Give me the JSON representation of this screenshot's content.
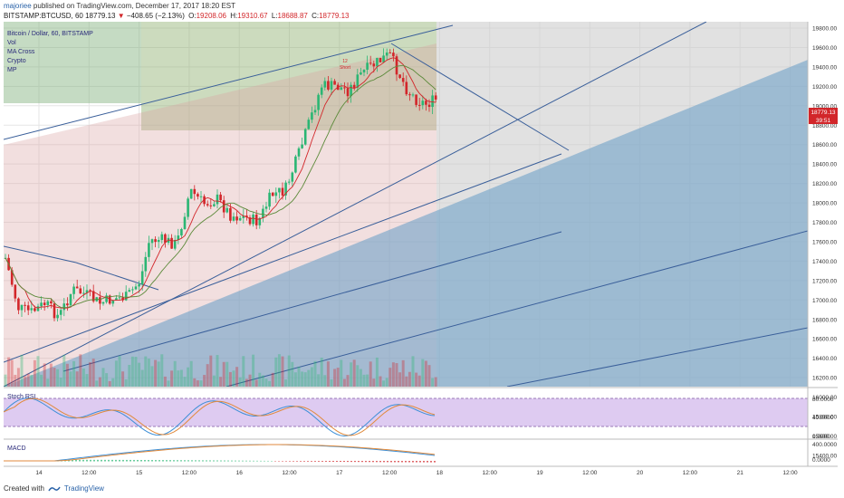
{
  "header": {
    "author": "majoriee",
    "published_text": "published on TradingView.com, December 17, 2017 18:20 EST",
    "symbol": "BITSTAMP:BTCUSD, 60",
    "last": "18779.13",
    "change": "−408.65 (−2.13%)",
    "open_label": "O:",
    "open": "19208.06",
    "high_label": "H:",
    "high": "19310.67",
    "low_label": "L:",
    "low": "18688.87",
    "close_label": "C:",
    "close": "18779.13"
  },
  "legend": {
    "title": "Bitcoin / Dollar, 60, BITSTAMP",
    "items": [
      "Vol",
      "MA Cross",
      "Crypto",
      "MP"
    ]
  },
  "price_axis": {
    "ticks": [
      "19800.00",
      "19600.00",
      "19400.00",
      "19200.00",
      "19000.00",
      "18800.00",
      "18600.00",
      "18400.00",
      "18200.00",
      "18000.00",
      "17800.00",
      "17600.00",
      "17400.00",
      "17200.00",
      "17000.00",
      "16800.00",
      "16600.00",
      "16400.00",
      "16200.00",
      "16000.00",
      "15800.00",
      "15600.00",
      "15400.00"
    ],
    "current_price": "18779.13",
    "countdown": "39:51"
  },
  "time_axis": {
    "labels": [
      "14",
      "12:00",
      "15",
      "12:00",
      "16",
      "12:00",
      "17",
      "12:00",
      "18",
      "12:00",
      "19",
      "12:00",
      "20",
      "12:00",
      "21",
      "12:00"
    ]
  },
  "annotations": {
    "marker_top": "12",
    "marker_bottom": "Short"
  },
  "stoch_rsi": {
    "title": "Stoch RSI",
    "ticks": [
      "80.0000",
      "40.0000",
      "0.0000"
    ]
  },
  "macd": {
    "title": "MACD",
    "ticks": [
      "400.0000",
      "0.0000"
    ]
  },
  "footer": {
    "created_with": "Created with",
    "brand": "TradingView"
  },
  "colors": {
    "bull": "#2bb673",
    "bear": "#d2262a",
    "channel_fill": "#6fa1c8",
    "stoch_band": "#c8a8e8",
    "price_tag": "#d2262a"
  }
}
